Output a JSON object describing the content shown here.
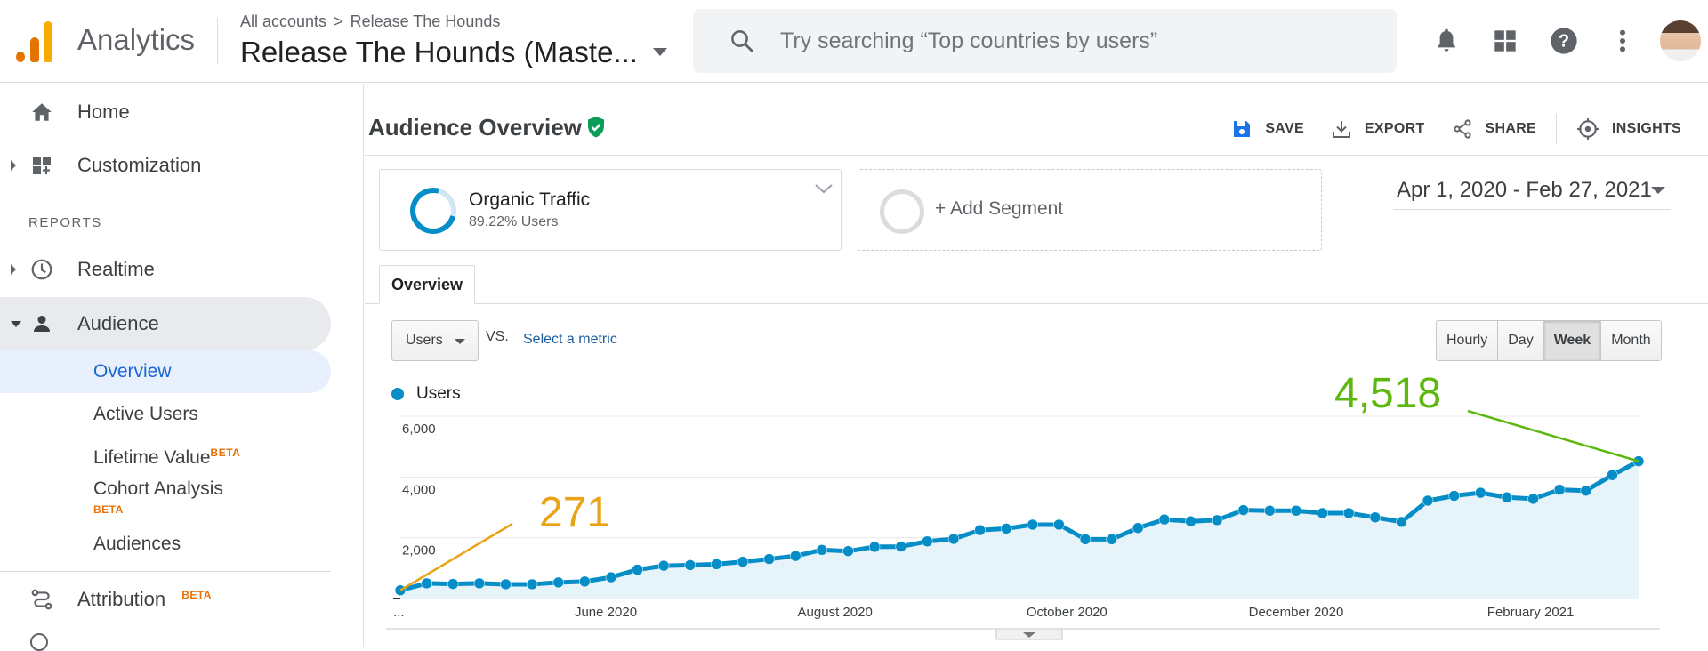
{
  "topbar": {
    "app_name": "Analytics",
    "breadcrumb_root": "All accounts",
    "breadcrumb_sep": ">",
    "breadcrumb_account": "Release The Hounds",
    "account_view": "Release The Hounds (Maste...",
    "search_placeholder": "Try searching “Top countries by users”",
    "icons": [
      "notifications-icon",
      "apps-grid-icon",
      "help-icon",
      "more-vert-icon",
      "avatar"
    ]
  },
  "sidebar": {
    "home": "Home",
    "customization": "Customization",
    "reports_label": "REPORTS",
    "realtime": "Realtime",
    "audience": "Audience",
    "audience_items": {
      "overview": "Overview",
      "active_users": "Active Users",
      "lifetime_value": "Lifetime Value",
      "cohort_analysis": "Cohort Analysis",
      "audiences": "Audiences"
    },
    "beta": "BETA",
    "attribution": "Attribution"
  },
  "main": {
    "title": "Audience Overview",
    "actions": {
      "save": "SAVE",
      "export": "EXPORT",
      "share": "SHARE",
      "insights": "INSIGHTS"
    },
    "segment": {
      "name": "Organic Traffic",
      "sub": "89.22% Users"
    },
    "add_segment": "+ Add Segment",
    "date_range": "Apr 1, 2020 - Feb 27, 2021",
    "tab": "Overview",
    "metric": "Users",
    "vs": "VS.",
    "select_metric": "Select a metric",
    "granularity": [
      "Hourly",
      "Day",
      "Week",
      "Month"
    ],
    "granularity_active": "Week",
    "legend": "Users"
  },
  "chart_data": {
    "type": "area",
    "series": [
      {
        "name": "Users",
        "color": "#058dc7"
      }
    ],
    "ylim": [
      0,
      6000
    ],
    "y_ticks": [
      "6,000",
      "4,000",
      "2,000"
    ],
    "y_tick_values": [
      6000,
      4000,
      2000
    ],
    "x_ticks": [
      "...",
      "June 2020",
      "August 2020",
      "October 2020",
      "December 2020",
      "February 2021"
    ],
    "x_tick_weeks": [
      0,
      7.8,
      16.5,
      25.3,
      34.0,
      42.9
    ],
    "values": [
      271,
      500,
      480,
      500,
      470,
      470,
      530,
      560,
      700,
      950,
      1080,
      1100,
      1130,
      1210,
      1300,
      1400,
      1600,
      1560,
      1700,
      1710,
      1880,
      1960,
      2250,
      2300,
      2430,
      2430,
      1950,
      1950,
      2320,
      2600,
      2540,
      2580,
      2910,
      2890,
      2890,
      2810,
      2810,
      2670,
      2520,
      3220,
      3380,
      3480,
      3330,
      3280,
      3580,
      3550,
      4060,
      4518
    ],
    "annotations": [
      {
        "label": "271",
        "color": "#e8a317",
        "value": 271
      },
      {
        "label": "4,518",
        "color": "#5cb80f",
        "value": 4518
      }
    ]
  }
}
